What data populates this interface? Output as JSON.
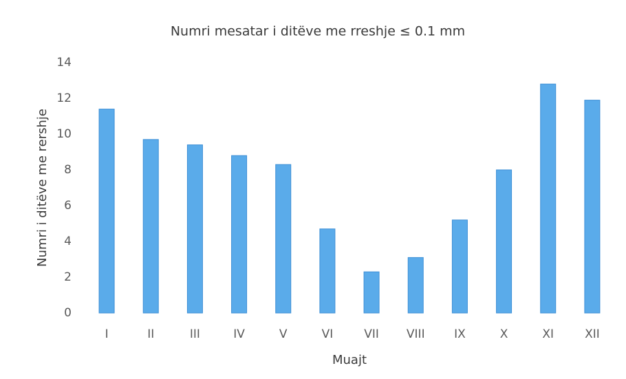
{
  "chart_data": {
    "type": "bar",
    "title": "Numri mesatar i ditëve me rreshje ≤ 0.1 mm",
    "x_label": "Muajt",
    "y_label": "Numri i ditëve me rershje",
    "categories": [
      "I",
      "II",
      "III",
      "IV",
      "V",
      "VI",
      "VII",
      "VIII",
      "IX",
      "X",
      "XI",
      "XII"
    ],
    "values": [
      11.4,
      9.7,
      9.4,
      8.8,
      8.3,
      4.7,
      2.3,
      3.1,
      5.2,
      8.0,
      12.8,
      11.9
    ],
    "color": "#5aabea",
    "ylim": [
      0,
      14
    ],
    "yticks": [
      0,
      2,
      4,
      6,
      8,
      10,
      12,
      14
    ],
    "grid": false
  }
}
